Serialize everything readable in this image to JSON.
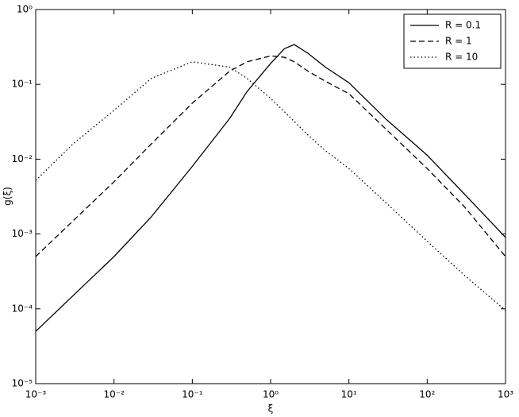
{
  "chart_data": {
    "type": "line",
    "xlabel": "ξ",
    "ylabel": "g(ξ)",
    "log_x": true,
    "log_y": true,
    "legend": "upper right",
    "x": [
      0.001,
      0.003,
      0.01,
      0.03,
      0.1,
      0.3,
      0.5,
      1,
      1.5,
      2,
      3,
      5,
      10,
      30,
      100,
      300,
      1000
    ],
    "series": [
      {
        "name": "R = 0.1",
        "color": "#000000",
        "dash": "solid",
        "values": [
          5e-05,
          0.00015,
          0.0005,
          0.0017,
          0.008,
          0.035,
          0.08,
          0.19,
          0.3,
          0.34,
          0.26,
          0.17,
          0.105,
          0.034,
          0.0113,
          0.0034,
          0.0009
        ]
      },
      {
        "name": "R = 1",
        "color": "#000000",
        "dash": "dashed",
        "values": [
          0.0005,
          0.0015,
          0.005,
          0.016,
          0.056,
          0.15,
          0.2,
          0.24,
          0.23,
          0.2,
          0.15,
          0.11,
          0.075,
          0.025,
          0.0075,
          0.0023,
          0.0005
        ]
      },
      {
        "name": "R = 10",
        "color": "#000000",
        "dash": "dotted",
        "values": [
          0.0052,
          0.016,
          0.045,
          0.12,
          0.2,
          0.17,
          0.12,
          0.065,
          0.043,
          0.032,
          0.021,
          0.013,
          0.0075,
          0.0026,
          0.0008,
          0.00028,
          9.5e-05
        ]
      }
    ],
    "xlim": [
      0.001,
      1000
    ],
    "ylim": [
      1e-05,
      1
    ],
    "xticks": [
      {
        "value": 0.001,
        "label": "10⁻³"
      },
      {
        "value": 0.01,
        "label": "10⁻²"
      },
      {
        "value": 0.1,
        "label": "10⁻¹"
      },
      {
        "value": 1,
        "label": "10⁰"
      },
      {
        "value": 10,
        "label": "10¹"
      },
      {
        "value": 100,
        "label": "10²"
      },
      {
        "value": 1000,
        "label": "10³"
      }
    ],
    "yticks": [
      {
        "value": 1e-05,
        "label": "10⁻⁵"
      },
      {
        "value": 0.0001,
        "label": "10⁻⁴"
      },
      {
        "value": 0.001,
        "label": "10⁻³"
      },
      {
        "value": 0.01,
        "label": "10⁻²"
      },
      {
        "value": 0.1,
        "label": "10⁻¹"
      },
      {
        "value": 1,
        "label": "10⁰"
      }
    ]
  }
}
